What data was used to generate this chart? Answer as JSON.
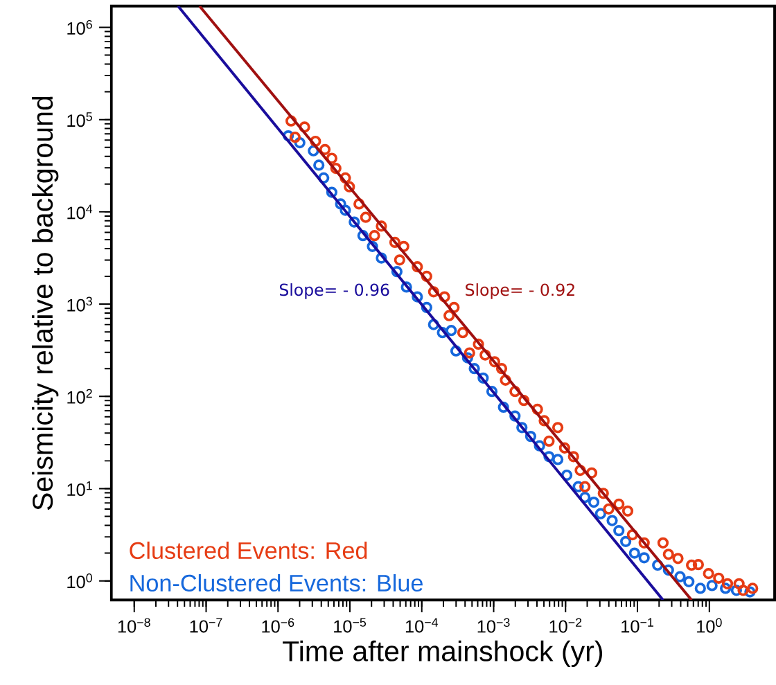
{
  "chart_data": {
    "type": "scatter",
    "xlabel": "Time after mainshock (yr)",
    "ylabel": "Seismicity relative to background",
    "log": "xy",
    "grid": false,
    "legend": "bottom left",
    "xlim": [
      4.8e-09,
      8.1
    ],
    "ylim": [
      0.62,
      1700000.0
    ],
    "xticks": [
      {
        "value": 1e-08,
        "label": "10$^{−8}$"
      },
      {
        "value": 1e-07,
        "label": "10$^{−7}$"
      },
      {
        "value": 1e-06,
        "label": "10$^{−6}$"
      },
      {
        "value": 1e-05,
        "label": "10$^{−5}$"
      },
      {
        "value": 0.0001,
        "label": "10$^{−4}$"
      },
      {
        "value": 0.001,
        "label": "10$^{−3}$"
      },
      {
        "value": 0.01,
        "label": "10$^{−2}$"
      },
      {
        "value": 0.1,
        "label": "10$^{−1}$"
      },
      {
        "value": 1,
        "label": "10$^{0}$"
      }
    ],
    "yticks": [
      {
        "value": 1,
        "label": "10$^{0}$"
      },
      {
        "value": 10,
        "label": "10$^{1}$"
      },
      {
        "value": 100,
        "label": "10$^{2}$"
      },
      {
        "value": 1000,
        "label": "10$^{3}$"
      },
      {
        "value": 10000,
        "label": "10$^{4}$"
      },
      {
        "value": 100000,
        "label": "10$^{5}$"
      },
      {
        "value": 1000000,
        "label": "10$^{6}$"
      }
    ],
    "series": [
      {
        "name": "Clustered Events: Red",
        "marker": "circle",
        "color": "#e63c14",
        "x": [
          1.52e-06,
          1.73e-06,
          2.34e-06,
          3.32e-06,
          4.5e-06,
          5.6e-06,
          6.38e-06,
          8.65e-06,
          9.84e-06,
          1.34e-05,
          1.66e-05,
          2.2e-05,
          2.74e-05,
          4.23e-05,
          4.92e-05,
          5.61e-05,
          8.67e-05,
          0.000117,
          0.000146,
          0.000207,
          0.00024,
          0.000281,
          0.000372,
          0.000462,
          0.000614,
          0.000762,
          0.00103,
          0.00129,
          0.00146,
          0.00198,
          0.00263,
          0.00406,
          0.00505,
          0.00589,
          0.0078,
          0.0097,
          0.0129,
          0.016,
          0.0186,
          0.0231,
          0.0335,
          0.0399,
          0.0552,
          0.0733,
          0.0853,
          0.124,
          0.227,
          0.27,
          0.366,
          0.566,
          0.703,
          0.975,
          1.35,
          1.79,
          2.59,
          2.95,
          4.0
        ],
        "values": [
          96600.0,
          64400.0,
          83000.0,
          58200.0,
          47400.0,
          38100.0,
          29600.0,
          23300.0,
          18700.0,
          12200.0,
          8730.0,
          5530.0,
          7010.0,
          4670.0,
          3010.0,
          4220.0,
          2540.0,
          2000.0,
          1360.0,
          1200.0,
          750,
          919,
          491,
          296,
          368,
          281,
          237,
          200,
          150,
          113,
          90.3,
          72.4,
          54.4,
          32.7,
          45.9,
          27.6,
          22.2,
          15.8,
          10.5,
          14.8,
          8.89,
          6.02,
          6.78,
          5.72,
          3.16,
          2.58,
          2.58,
          1.94,
          1.75,
          1.48,
          1.5,
          1.2,
          1.07,
          0.93,
          0.93,
          0.79,
          0.83
        ]
      },
      {
        "name": "Non-Clustered Events: Blue",
        "marker": "circle",
        "color": "#1668dc",
        "x": [
          1.39e-06,
          2.01e-06,
          3.11e-06,
          3.7e-06,
          4.32e-06,
          5.6e-06,
          7.43e-06,
          8.65e-06,
          1.15e-05,
          1.52e-05,
          2.06e-05,
          2.74e-05,
          4.51e-05,
          6.12e-05,
          8.67e-05,
          0.000117,
          0.000146,
          0.000194,
          0.000257,
          0.000299,
          0.000433,
          0.000538,
          0.000714,
          0.000946,
          0.00137,
          0.00198,
          0.00247,
          0.00327,
          0.00434,
          0.00589,
          0.0078,
          0.0104,
          0.015,
          0.0186,
          0.0247,
          0.0307,
          0.0445,
          0.0552,
          0.0687,
          0.091,
          0.124,
          0.191,
          0.27,
          0.391,
          0.519,
          0.75,
          1.09,
          1.68,
          2.38,
          3.67
        ],
        "values": [
          66700.0,
          56200.0,
          45900.0,
          32100.0,
          23300.0,
          16300.0,
          12200.0,
          10400.0,
          7760.0,
          5530.0,
          4220.0,
          3160.0,
          2250.0,
          1530.0,
          1200.0,
          919,
          601,
          491,
          517,
          311,
          262,
          200,
          158,
          113,
          76.3,
          61.2,
          45.9,
          36.8,
          29.1,
          22.2,
          20.7,
          14.0,
          10.5,
          8.02,
          7.13,
          5.35,
          4.51,
          3.5,
          2.67,
          2.0,
          1.78,
          1.48,
          1.31,
          1.11,
          0.98,
          0.83,
          0.89,
          0.83,
          0.79,
          0.76
        ]
      },
      {
        "name": "Slope= - 0.92",
        "type": "line",
        "marker": "none",
        "line_style": "solid",
        "color": "#a01010",
        "x": [
          8.1e-08,
          0.566
        ],
        "values": [
          1700000.0,
          0.62
        ]
      },
      {
        "name": "Slope= - 0.96",
        "type": "line",
        "marker": "none",
        "line_style": "solid",
        "color": "#1a0d9c",
        "x": [
          4.07e-08,
          0.227
        ],
        "values": [
          1700000.0,
          0.62
        ]
      }
    ]
  }
}
